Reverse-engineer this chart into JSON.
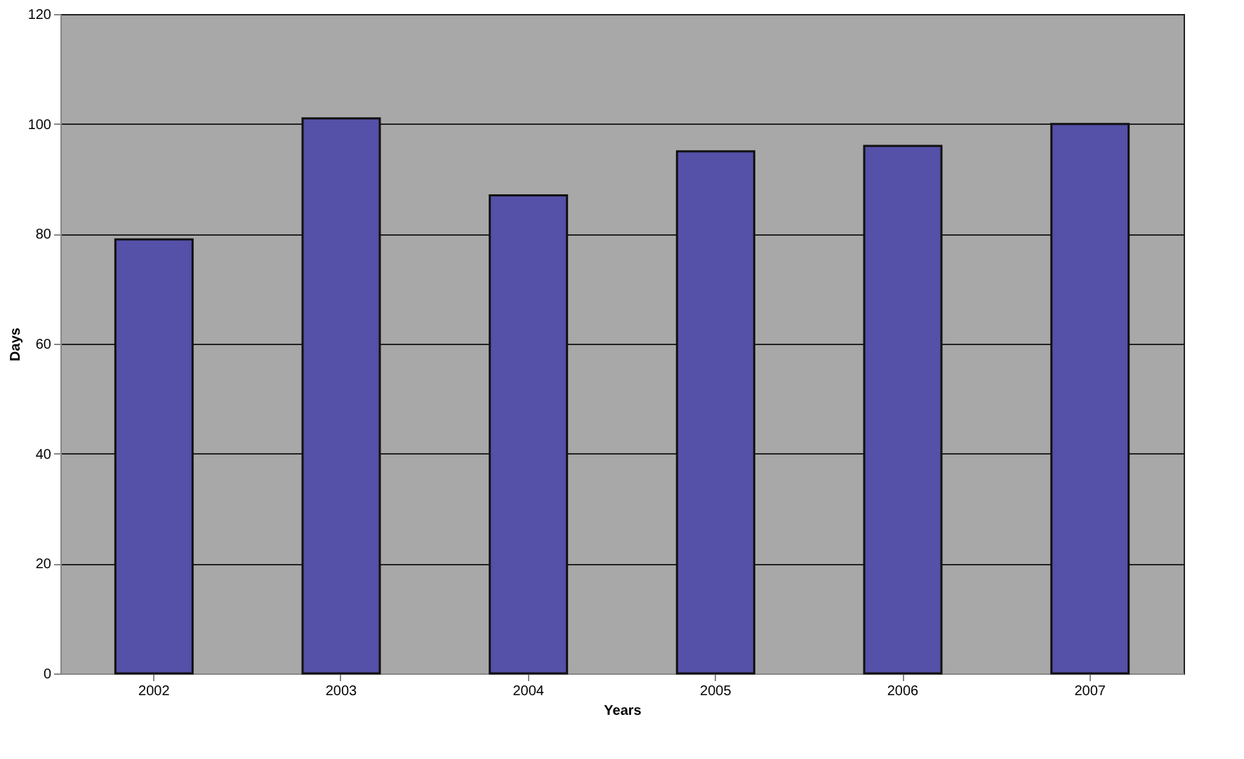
{
  "chart_data": {
    "type": "bar",
    "xlabel": "Years",
    "ylabel": "Days",
    "categories": [
      "2002",
      "2003",
      "2004",
      "2005",
      "2006",
      "2007"
    ],
    "values": [
      79,
      101,
      87,
      95,
      96,
      100
    ],
    "color": "#5550a8",
    "ylim": [
      0,
      120
    ],
    "yticks": [
      0,
      20,
      40,
      60,
      80,
      100,
      120
    ],
    "grid": "y"
  }
}
